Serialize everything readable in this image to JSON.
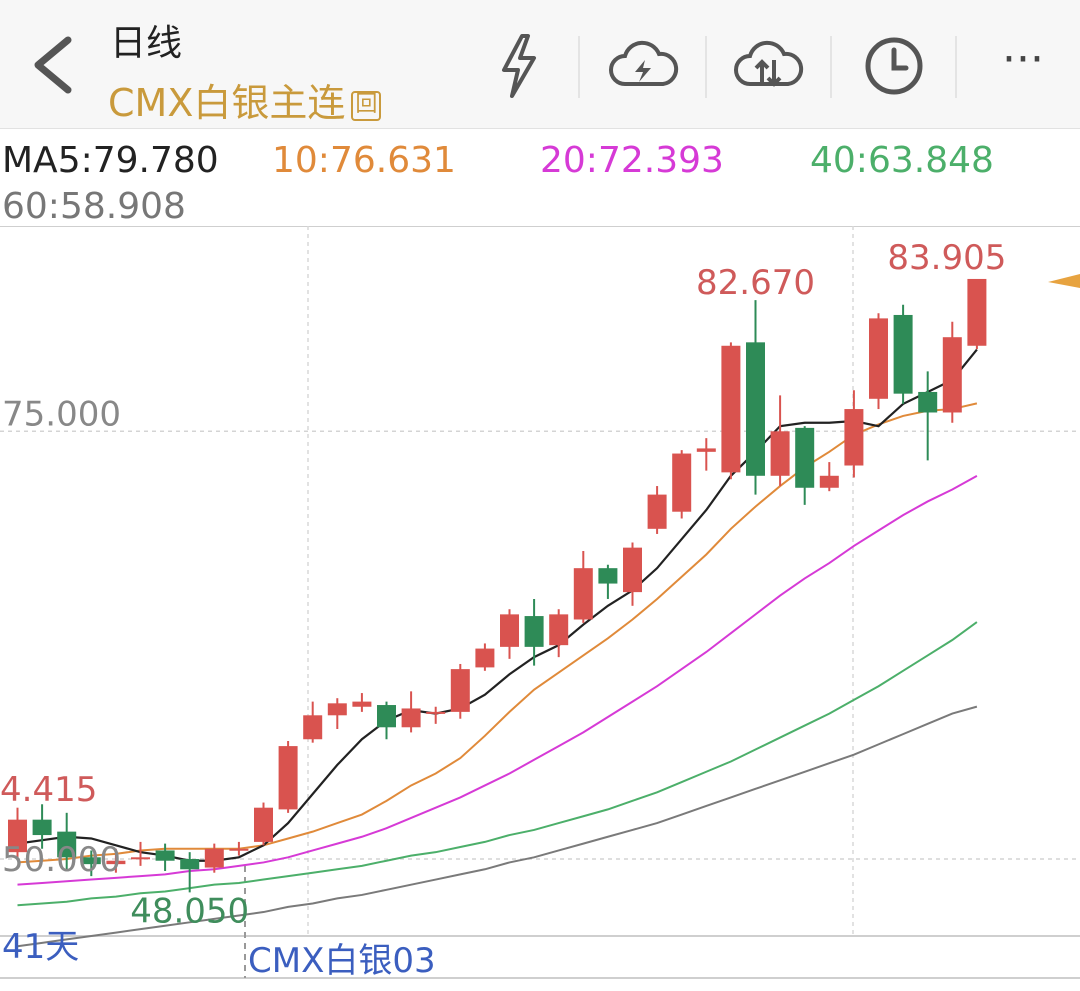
{
  "header": {
    "title": "日线",
    "instrument": "CMX白银主连",
    "instrument_badge": "回",
    "icons": [
      "back-arrow-icon",
      "lightning-icon",
      "cloud-lightning-icon",
      "cloud-sync-icon",
      "clock-icon",
      "more-icon"
    ],
    "more_label": "···"
  },
  "ma_legend": {
    "ma5": "MA5:79.780",
    "ma10": "10:76.631",
    "ma20": "20:72.393",
    "ma40": "40:63.848",
    "ma60": "60:58.908",
    "colors": {
      "ma5": "#222222",
      "ma10": "#e08a3a",
      "ma20": "#d63ad6",
      "ma40": "#4caf6a",
      "ma60": "#7a7a7a"
    }
  },
  "chart_labels": {
    "high_mark_1": "82.670",
    "high_mark_2": "83.905",
    "low_mark": "48.050",
    "left_high_partial": "4.415",
    "grid_label_75": "75.000",
    "grid_label_50": "50.000",
    "days_label": "41天",
    "contract_label": "CMX白银03"
  },
  "chart_data": {
    "type": "candlestick",
    "ylim": [
      45.5,
      87
    ],
    "gridlines": [
      75,
      50
    ],
    "up_color": "#d9534f",
    "down_color": "#2e8b57",
    "candles": [
      {
        "o": 50.4,
        "c": 52.3,
        "h": 53.0,
        "l": 50.0
      },
      {
        "o": 52.3,
        "c": 51.4,
        "h": 53.2,
        "l": 50.6
      },
      {
        "o": 51.6,
        "c": 50.1,
        "h": 52.7,
        "l": 49.4
      },
      {
        "o": 50.1,
        "c": 49.7,
        "h": 50.5,
        "l": 49.0
      },
      {
        "o": 49.7,
        "c": 49.9,
        "h": 50.6,
        "l": 49.2
      },
      {
        "o": 50.0,
        "c": 50.1,
        "h": 51.0,
        "l": 49.6
      },
      {
        "o": 50.5,
        "c": 49.9,
        "h": 50.9,
        "l": 49.3
      },
      {
        "o": 50.0,
        "c": 49.4,
        "h": 50.4,
        "l": 48.05
      },
      {
        "o": 49.5,
        "c": 50.6,
        "h": 50.9,
        "l": 49.2
      },
      {
        "o": 50.5,
        "c": 50.6,
        "h": 51.0,
        "l": 50.2
      },
      {
        "o": 51.0,
        "c": 53.0,
        "h": 53.3,
        "l": 50.8
      },
      {
        "o": 52.9,
        "c": 56.6,
        "h": 56.9,
        "l": 52.7
      },
      {
        "o": 57.0,
        "c": 58.4,
        "h": 59.2,
        "l": 56.8
      },
      {
        "o": 58.4,
        "c": 59.1,
        "h": 59.4,
        "l": 57.6
      },
      {
        "o": 58.9,
        "c": 59.2,
        "h": 59.7,
        "l": 58.6
      },
      {
        "o": 59.0,
        "c": 57.7,
        "h": 59.2,
        "l": 57.0
      },
      {
        "o": 57.7,
        "c": 58.8,
        "h": 59.8,
        "l": 57.4
      },
      {
        "o": 58.5,
        "c": 58.6,
        "h": 58.9,
        "l": 57.9
      },
      {
        "o": 58.6,
        "c": 61.1,
        "h": 61.4,
        "l": 58.2
      },
      {
        "o": 61.2,
        "c": 62.3,
        "h": 62.6,
        "l": 61.0
      },
      {
        "o": 62.4,
        "c": 64.3,
        "h": 64.6,
        "l": 61.7
      },
      {
        "o": 64.2,
        "c": 62.4,
        "h": 65.2,
        "l": 61.3
      },
      {
        "o": 62.5,
        "c": 64.3,
        "h": 64.6,
        "l": 61.8
      },
      {
        "o": 64.0,
        "c": 67.0,
        "h": 68.0,
        "l": 63.8
      },
      {
        "o": 67.0,
        "c": 66.1,
        "h": 67.2,
        "l": 65.2
      },
      {
        "o": 65.6,
        "c": 68.2,
        "h": 68.5,
        "l": 64.8
      },
      {
        "o": 69.3,
        "c": 71.3,
        "h": 71.8,
        "l": 69.0
      },
      {
        "o": 70.3,
        "c": 73.7,
        "h": 73.9,
        "l": 69.9
      },
      {
        "o": 73.8,
        "c": 74.0,
        "h": 74.6,
        "l": 72.7
      },
      {
        "o": 72.6,
        "c": 80.0,
        "h": 80.2,
        "l": 72.2
      },
      {
        "o": 80.2,
        "c": 72.4,
        "h": 82.67,
        "l": 71.3
      },
      {
        "o": 72.4,
        "c": 75.0,
        "h": 77.1,
        "l": 71.8
      },
      {
        "o": 75.2,
        "c": 71.7,
        "h": 75.3,
        "l": 70.7
      },
      {
        "o": 71.7,
        "c": 72.4,
        "h": 73.2,
        "l": 71.5
      },
      {
        "o": 73.0,
        "c": 76.3,
        "h": 77.4,
        "l": 72.3
      },
      {
        "o": 76.9,
        "c": 81.6,
        "h": 81.9,
        "l": 76.3
      },
      {
        "o": 81.8,
        "c": 77.2,
        "h": 82.4,
        "l": 76.6
      },
      {
        "o": 77.3,
        "c": 76.1,
        "h": 78.5,
        "l": 73.3
      },
      {
        "o": 76.1,
        "c": 80.5,
        "h": 81.4,
        "l": 75.5
      },
      {
        "o": 80.0,
        "c": 83.905,
        "h": 83.905,
        "l": 79.8
      }
    ],
    "series": [
      {
        "name": "MA5",
        "values": [
          50.9,
          51.1,
          51.3,
          51.2,
          50.8,
          50.4,
          50.2,
          49.9,
          49.9,
          50.1,
          50.8,
          52.1,
          53.8,
          55.5,
          57.0,
          58.1,
          58.7,
          58.5,
          58.8,
          59.6,
          60.8,
          61.8,
          62.5,
          63.7,
          64.8,
          65.7,
          67.0,
          68.7,
          70.4,
          72.4,
          73.8,
          75.3,
          75.5,
          75.5,
          75.6,
          75.3,
          76.6,
          77.3,
          78.0,
          79.78
        ]
      },
      {
        "name": "MA10",
        "values": [
          49.8,
          49.9,
          50.0,
          50.2,
          50.3,
          50.5,
          50.6,
          50.6,
          50.6,
          50.6,
          50.8,
          51.2,
          51.6,
          52.1,
          52.6,
          53.4,
          54.3,
          55.0,
          55.9,
          57.2,
          58.6,
          59.9,
          60.9,
          61.9,
          62.9,
          64.0,
          65.2,
          66.5,
          67.8,
          69.3,
          70.6,
          71.8,
          72.9,
          73.8,
          74.8,
          75.4,
          75.9,
          76.2,
          76.3,
          76.631
        ]
      },
      {
        "name": "MA20",
        "values": [
          48.5,
          48.6,
          48.7,
          48.8,
          48.9,
          49.0,
          49.1,
          49.3,
          49.4,
          49.6,
          49.8,
          50.1,
          50.5,
          50.9,
          51.3,
          51.8,
          52.4,
          53.0,
          53.6,
          54.3,
          55.0,
          55.8,
          56.6,
          57.4,
          58.3,
          59.2,
          60.1,
          61.1,
          62.1,
          63.2,
          64.3,
          65.4,
          66.4,
          67.3,
          68.3,
          69.2,
          70.1,
          70.9,
          71.6,
          72.393
        ]
      },
      {
        "name": "MA40",
        "values": [
          47.3,
          47.4,
          47.5,
          47.7,
          47.8,
          48.0,
          48.1,
          48.3,
          48.5,
          48.6,
          48.8,
          49.0,
          49.2,
          49.4,
          49.6,
          49.9,
          50.2,
          50.4,
          50.7,
          51.0,
          51.4,
          51.7,
          52.1,
          52.5,
          52.9,
          53.4,
          53.9,
          54.5,
          55.1,
          55.7,
          56.4,
          57.1,
          57.8,
          58.5,
          59.3,
          60.1,
          61.0,
          61.9,
          62.8,
          63.848
        ]
      },
      {
        "name": "MA60",
        "values": [
          44.9,
          45.1,
          45.3,
          45.5,
          45.7,
          45.9,
          46.1,
          46.3,
          46.5,
          46.7,
          46.9,
          47.2,
          47.4,
          47.7,
          47.9,
          48.2,
          48.5,
          48.8,
          49.1,
          49.4,
          49.8,
          50.1,
          50.5,
          50.9,
          51.3,
          51.7,
          52.1,
          52.6,
          53.1,
          53.6,
          54.1,
          54.6,
          55.1,
          55.6,
          56.1,
          56.7,
          57.3,
          57.9,
          58.5,
          58.908
        ]
      }
    ]
  }
}
